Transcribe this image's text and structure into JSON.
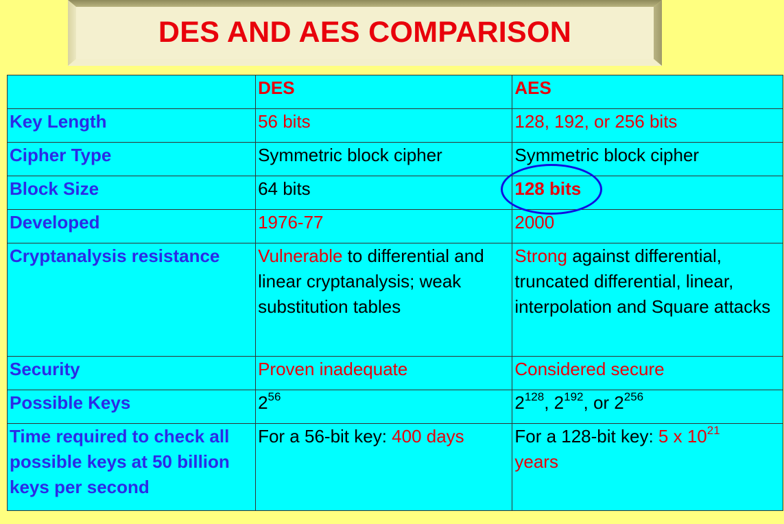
{
  "slide": {
    "title": "DES AND AES COMPARISON"
  },
  "table": {
    "header": {
      "corner": "",
      "des": "DES",
      "aes": "AES"
    },
    "rows": [
      {
        "label": "Key Length",
        "des": "56 bits",
        "aes": "128, 192, or 256 bits"
      },
      {
        "label": "Cipher Type",
        "des": "Symmetric block cipher",
        "aes": "Symmetric block cipher"
      },
      {
        "label": "Block Size",
        "des": "64 bits",
        "aes": "128 bits"
      },
      {
        "label": "Developed",
        "des": "1976-77",
        "aes": "2000"
      },
      {
        "label": "Cryptanalysis resistance",
        "des_lead": "Vulnerable",
        "des_rest": " to differential and linear cryptanalysis; weak substitution tables",
        "aes_lead": "Strong",
        "aes_rest": " against differential, truncated differential, linear, interpolation and Square attacks"
      },
      {
        "label": "Security",
        "des": "Proven inadequate",
        "aes": "Considered secure"
      },
      {
        "label": "Possible Keys",
        "des_base": "2",
        "des_exp": "56",
        "aes_b1": "2",
        "aes_e1": "128",
        "aes_sep1": ", ",
        "aes_b2": "2",
        "aes_e2": "192",
        "aes_sep2": ", or ",
        "aes_b3": "2",
        "aes_e3": "256"
      },
      {
        "label": "Time required to check all possible keys at 50 billion keys per second",
        "des_lead": "For a 56-bit key: ",
        "des_value": "400 days",
        "aes_lead": "For a 128-bit key: ",
        "aes_value_base": "5 x 10",
        "aes_value_exp": "21",
        "aes_value_unit": "years"
      }
    ]
  },
  "colors": {
    "background": "#FFFF80",
    "table_fill": "#00FFFF",
    "title": "#E8000B",
    "row_label": "#2B2BE6",
    "highlight_circle": "#1010E0"
  }
}
